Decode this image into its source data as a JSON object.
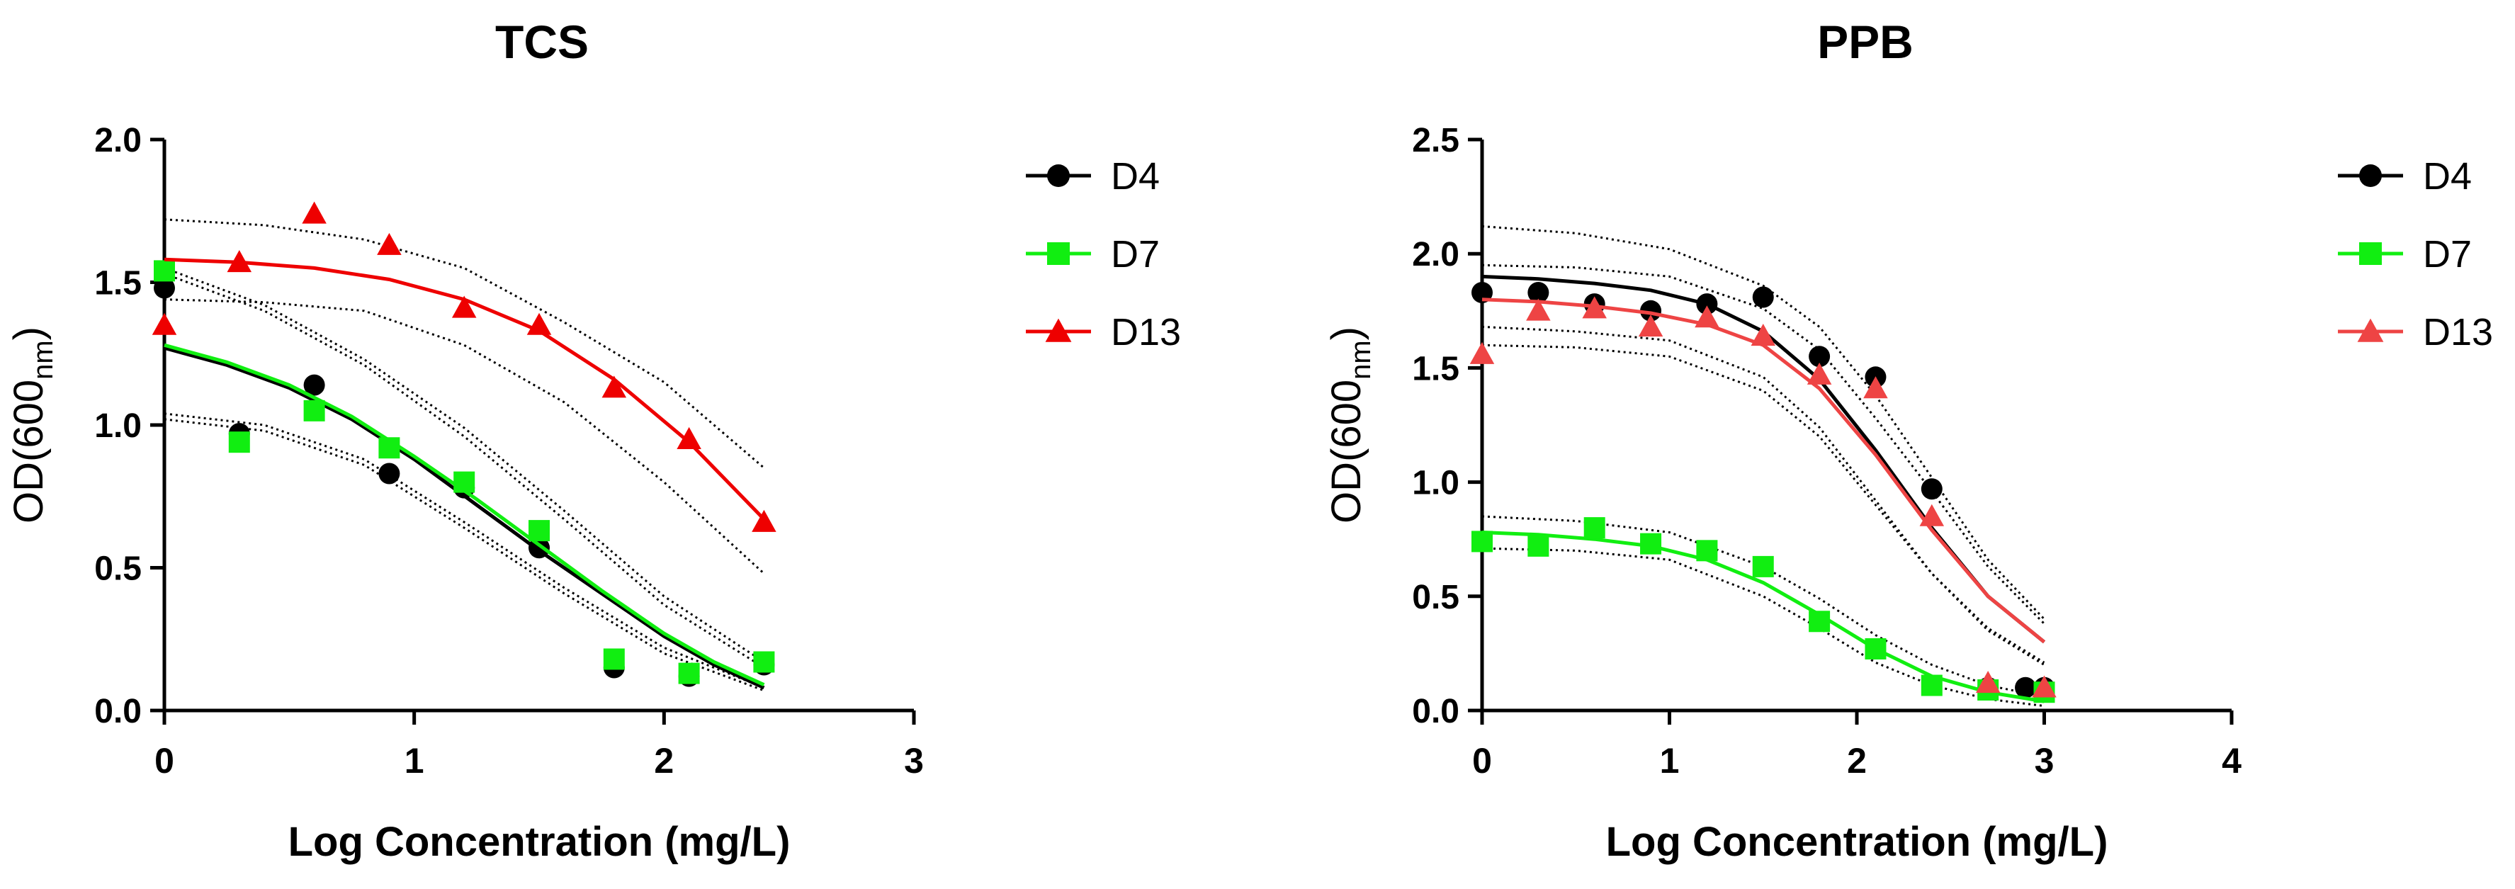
{
  "chart_data": [
    {
      "type": "scatter",
      "title": "TCS",
      "xlabel": "Log Concentration (mg/L)",
      "ylabel": {
        "main": "OD(600",
        "sub": "nm",
        "end": ")"
      },
      "xlim": [
        0,
        3
      ],
      "ylim": [
        0,
        2.0
      ],
      "xticks": [
        "0",
        "1",
        "2",
        "3"
      ],
      "xtick_values": [
        0,
        1,
        2,
        3
      ],
      "yticks": [
        "0.0",
        "0.5",
        "1.0",
        "1.5",
        "2.0"
      ],
      "ytick_values": [
        0,
        0.5,
        1.0,
        1.5,
        2.0
      ],
      "legend": {
        "position": "right"
      },
      "series": [
        {
          "name": "D4",
          "color": "#000000",
          "marker": "circle",
          "x": [
            0,
            0.3,
            0.6,
            0.9,
            1.2,
            1.5,
            1.8,
            2.1,
            2.4
          ],
          "y": [
            1.48,
            0.97,
            1.14,
            0.83,
            0.78,
            0.57,
            0.15,
            0.12,
            0.16
          ],
          "curve": {
            "x": [
              0,
              0.25,
              0.5,
              0.75,
              1.0,
              1.25,
              1.5,
              1.75,
              2.0,
              2.2,
              2.4
            ],
            "y": [
              1.27,
              1.21,
              1.13,
              1.02,
              0.88,
              0.72,
              0.56,
              0.41,
              0.26,
              0.16,
              0.08
            ]
          },
          "ci_upper": {
            "x": [
              0,
              0.4,
              0.8,
              1.2,
              1.6,
              2.0,
              2.4
            ],
            "y": [
              1.53,
              1.4,
              1.21,
              0.96,
              0.67,
              0.37,
              0.15
            ]
          },
          "ci_lower": {
            "x": [
              0,
              0.4,
              0.8,
              1.2,
              1.6,
              2.0,
              2.4
            ],
            "y": [
              1.02,
              0.98,
              0.86,
              0.64,
              0.41,
              0.2,
              0.07
            ]
          }
        },
        {
          "name": "D7",
          "color": "#11ee11",
          "marker": "square",
          "x": [
            0,
            0.3,
            0.6,
            0.9,
            1.2,
            1.5,
            1.8,
            2.1,
            2.4
          ],
          "y": [
            1.54,
            0.94,
            1.05,
            0.92,
            0.8,
            0.63,
            0.18,
            0.13,
            0.17
          ],
          "curve": {
            "x": [
              0,
              0.25,
              0.5,
              0.75,
              1.0,
              1.25,
              1.5,
              1.75,
              2.0,
              2.2,
              2.4
            ],
            "y": [
              1.28,
              1.22,
              1.14,
              1.03,
              0.89,
              0.74,
              0.58,
              0.42,
              0.27,
              0.17,
              0.09
            ]
          },
          "ci_upper": {
            "x": [
              0,
              0.4,
              0.8,
              1.2,
              1.6,
              2.0,
              2.4
            ],
            "y": [
              1.55,
              1.42,
              1.23,
              0.99,
              0.7,
              0.4,
              0.17
            ]
          },
          "ci_lower": {
            "x": [
              0,
              0.4,
              0.8,
              1.2,
              1.6,
              2.0,
              2.4
            ],
            "y": [
              1.04,
              1.0,
              0.88,
              0.66,
              0.43,
              0.22,
              0.08
            ]
          }
        },
        {
          "name": "D13",
          "color": "#ee0000",
          "marker": "triangle",
          "x": [
            0,
            0.3,
            0.6,
            0.9,
            1.2,
            1.5,
            1.8,
            2.1,
            2.4
          ],
          "y": [
            1.35,
            1.57,
            1.74,
            1.63,
            1.41,
            1.35,
            1.13,
            0.95,
            0.66
          ],
          "curve": {
            "x": [
              0,
              0.3,
              0.6,
              0.9,
              1.2,
              1.5,
              1.8,
              2.1,
              2.4
            ],
            "y": [
              1.58,
              1.57,
              1.55,
              1.51,
              1.44,
              1.33,
              1.16,
              0.94,
              0.67
            ]
          },
          "ci_upper": {
            "x": [
              0,
              0.4,
              0.8,
              1.2,
              1.6,
              2.0,
              2.4
            ],
            "y": [
              1.72,
              1.7,
              1.65,
              1.55,
              1.36,
              1.15,
              0.85
            ]
          },
          "ci_lower": {
            "x": [
              0,
              0.4,
              0.8,
              1.2,
              1.6,
              2.0,
              2.4
            ],
            "y": [
              1.44,
              1.43,
              1.4,
              1.28,
              1.08,
              0.8,
              0.48
            ]
          }
        }
      ]
    },
    {
      "type": "scatter",
      "title": "PPB",
      "xlabel": "Log Concentration (mg/L)",
      "ylabel": {
        "main": "OD(600",
        "sub": "nm",
        "end": ")"
      },
      "xlim": [
        0,
        4
      ],
      "ylim": [
        0,
        2.5
      ],
      "xticks": [
        "0",
        "1",
        "2",
        "3",
        "4"
      ],
      "xtick_values": [
        0,
        1,
        2,
        3,
        4
      ],
      "yticks": [
        "0.0",
        "0.5",
        "1.0",
        "1.5",
        "2.0",
        "2.5"
      ],
      "ytick_values": [
        0,
        0.5,
        1.0,
        1.5,
        2.0,
        2.5
      ],
      "legend": {
        "position": "right"
      },
      "series": [
        {
          "name": "D4",
          "color": "#000000",
          "marker": "circle",
          "x": [
            0,
            0.3,
            0.6,
            0.9,
            1.2,
            1.5,
            1.8,
            2.1,
            2.4,
            2.7,
            2.9,
            3.0
          ],
          "y": [
            1.83,
            1.83,
            1.78,
            1.75,
            1.78,
            1.81,
            1.55,
            1.46,
            0.97,
            0.1,
            0.1,
            0.1
          ],
          "curve": {
            "x": [
              0,
              0.3,
              0.6,
              0.9,
              1.2,
              1.5,
              1.8,
              2.1,
              2.4,
              2.7,
              3.0
            ],
            "y": [
              1.9,
              1.89,
              1.87,
              1.84,
              1.78,
              1.66,
              1.45,
              1.14,
              0.8,
              0.5,
              0.3
            ]
          },
          "ci_upper": {
            "x": [
              0,
              0.5,
              1.0,
              1.5,
              1.8,
              2.1,
              2.4,
              2.7,
              3.0
            ],
            "y": [
              2.12,
              2.09,
              2.02,
              1.86,
              1.68,
              1.38,
              1.02,
              0.66,
              0.4
            ]
          },
          "ci_lower": {
            "x": [
              0,
              0.5,
              1.0,
              1.5,
              1.8,
              2.1,
              2.4,
              2.7,
              3.0
            ],
            "y": [
              1.68,
              1.66,
              1.62,
              1.46,
              1.24,
              0.92,
              0.6,
              0.35,
              0.2
            ]
          }
        },
        {
          "name": "D7",
          "color": "#11ee11",
          "marker": "square",
          "x": [
            0,
            0.3,
            0.6,
            0.9,
            1.2,
            1.5,
            1.8,
            2.1,
            2.4,
            2.7,
            3.0
          ],
          "y": [
            0.74,
            0.72,
            0.8,
            0.73,
            0.7,
            0.63,
            0.39,
            0.27,
            0.11,
            0.09,
            0.08
          ],
          "curve": {
            "x": [
              0,
              0.3,
              0.6,
              0.9,
              1.2,
              1.5,
              1.8,
              2.1,
              2.4,
              2.7,
              3.0
            ],
            "y": [
              0.78,
              0.77,
              0.75,
              0.72,
              0.66,
              0.56,
              0.42,
              0.27,
              0.15,
              0.08,
              0.04
            ]
          },
          "ci_upper": {
            "x": [
              0,
              0.5,
              1.0,
              1.5,
              1.8,
              2.1,
              2.4,
              2.7,
              3.0
            ],
            "y": [
              0.85,
              0.83,
              0.78,
              0.63,
              0.49,
              0.33,
              0.2,
              0.11,
              0.06
            ]
          },
          "ci_lower": {
            "x": [
              0,
              0.5,
              1.0,
              1.5,
              1.8,
              2.1,
              2.4,
              2.7,
              3.0
            ],
            "y": [
              0.71,
              0.7,
              0.66,
              0.5,
              0.36,
              0.21,
              0.11,
              0.05,
              0.02
            ]
          }
        },
        {
          "name": "D13",
          "color": "#ee4444",
          "marker": "triangle",
          "x": [
            0,
            0.3,
            0.6,
            0.9,
            1.2,
            1.5,
            1.8,
            2.1,
            2.4,
            2.7,
            3.0
          ],
          "y": [
            1.56,
            1.75,
            1.76,
            1.68,
            1.72,
            1.64,
            1.47,
            1.41,
            0.85,
            0.12,
            0.1
          ],
          "curve": {
            "x": [
              0,
              0.3,
              0.6,
              0.9,
              1.2,
              1.5,
              1.8,
              2.1,
              2.4,
              2.7,
              3.0
            ],
            "y": [
              1.8,
              1.79,
              1.77,
              1.74,
              1.69,
              1.6,
              1.41,
              1.12,
              0.79,
              0.5,
              0.3
            ]
          },
          "ci_upper": {
            "x": [
              0,
              0.5,
              1.0,
              1.5,
              1.8,
              2.1,
              2.4,
              2.7,
              3.0
            ],
            "y": [
              1.95,
              1.94,
              1.9,
              1.76,
              1.58,
              1.28,
              0.96,
              0.63,
              0.38
            ]
          },
          "ci_lower": {
            "x": [
              0,
              0.5,
              1.0,
              1.5,
              1.8,
              2.1,
              2.4,
              2.7,
              3.0
            ],
            "y": [
              1.6,
              1.59,
              1.55,
              1.4,
              1.2,
              0.9,
              0.6,
              0.36,
              0.21
            ]
          }
        }
      ]
    }
  ]
}
